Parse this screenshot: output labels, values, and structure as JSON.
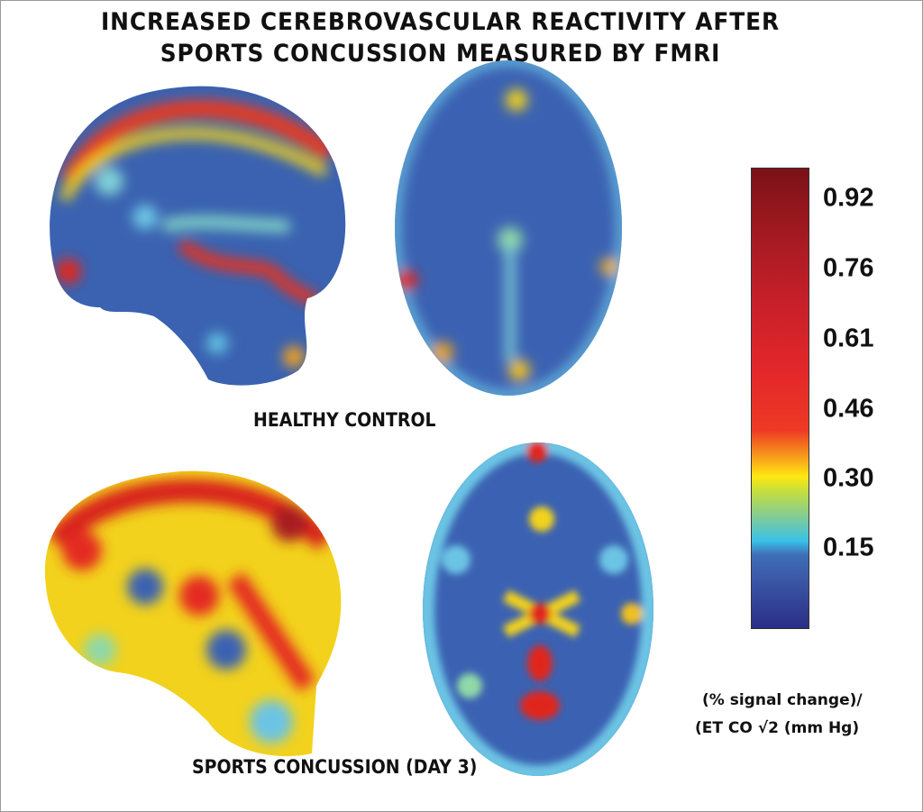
{
  "title": {
    "line1": "INCREASED CEREBROVASCULAR REACTIVITY AFTER",
    "line2": "SPORTS CONCUSSION MEASURED BY FMRI"
  },
  "panels": {
    "healthy_label": "HEALTHY CONTROL",
    "concussion_label": "SPORTS CONCUSSION (DAY 3)"
  },
  "colorbar": {
    "colormap": "jet",
    "ticks": [
      "0.92",
      "0.76",
      "0.61",
      "0.46",
      "0.30",
      "0.15"
    ],
    "units_line1": "(% signal change)/",
    "units_line2": "(ET CO √2  (mm Hg)"
  }
}
